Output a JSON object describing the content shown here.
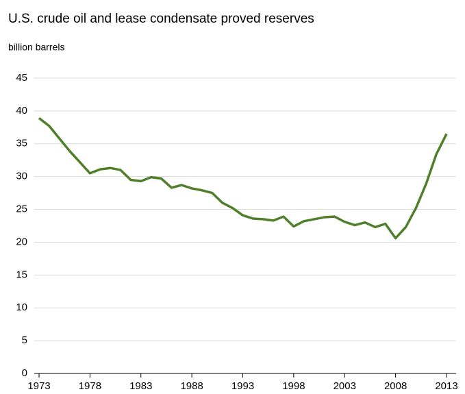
{
  "chart_data": {
    "type": "line",
    "title": "U.S. crude oil and lease condensate proved reserves",
    "y_label": "billion barrels",
    "x": [
      1973,
      1974,
      1975,
      1976,
      1977,
      1978,
      1979,
      1980,
      1981,
      1982,
      1983,
      1984,
      1985,
      1986,
      1987,
      1988,
      1989,
      1990,
      1991,
      1992,
      1993,
      1994,
      1995,
      1996,
      1997,
      1998,
      1999,
      2000,
      2001,
      2002,
      2003,
      2004,
      2005,
      2006,
      2007,
      2008,
      2009,
      2010,
      2011,
      2012,
      2013
    ],
    "series": [
      {
        "name": "proved reserves",
        "color": "#4f7f2a",
        "values": [
          38.9,
          37.7,
          35.8,
          33.9,
          32.2,
          30.5,
          31.1,
          31.3,
          31.0,
          29.5,
          29.3,
          29.9,
          29.7,
          28.3,
          28.7,
          28.2,
          27.9,
          27.5,
          26.0,
          25.2,
          24.1,
          23.6,
          23.5,
          23.3,
          23.9,
          22.4,
          23.2,
          23.5,
          23.8,
          23.9,
          23.1,
          22.6,
          23.0,
          22.3,
          22.8,
          20.6,
          22.3,
          25.2,
          28.9,
          33.4,
          36.5
        ]
      }
    ],
    "xlim": [
      1973,
      2013
    ],
    "xticks": [
      1973,
      1978,
      1983,
      1988,
      1993,
      1998,
      2003,
      2008,
      2013
    ],
    "ylim": [
      0,
      45
    ],
    "yticks": [
      0,
      5,
      10,
      15,
      20,
      25,
      30,
      35,
      40,
      45
    ],
    "grid": true
  }
}
